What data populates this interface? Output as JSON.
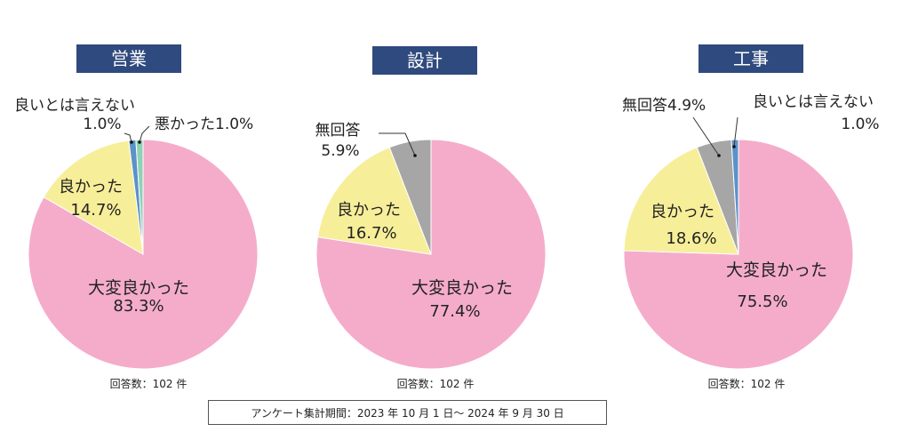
{
  "chart_data": [
    {
      "type": "pie",
      "title": "営業",
      "footnote": "回答数：102 件",
      "slices": [
        {
          "name": "大変良かった",
          "label": "83.3%",
          "value": 83.3,
          "color": "#F5ACCB"
        },
        {
          "name": "良かった",
          "label": "14.7%",
          "value": 14.7,
          "color": "#F7EE99"
        },
        {
          "name": "良いとは言えない",
          "label": "1.0%",
          "value": 1.0,
          "color": "#5B92C8"
        },
        {
          "name": "悪かった",
          "label": "1.0%",
          "value": 1.0,
          "color": "#8FD1B5"
        }
      ]
    },
    {
      "type": "pie",
      "title": "設計",
      "footnote": "回答数：102 件",
      "slices": [
        {
          "name": "大変良かった",
          "label": "77.4%",
          "value": 77.4,
          "color": "#F5ACCB"
        },
        {
          "name": "良かった",
          "label": "16.7%",
          "value": 16.7,
          "color": "#F7EE99"
        },
        {
          "name": "無回答",
          "label": "5.9%",
          "value": 5.9,
          "color": "#A6A6A6"
        }
      ]
    },
    {
      "type": "pie",
      "title": "工事",
      "footnote": "回答数：102 件",
      "slices": [
        {
          "name": "大変良かった",
          "label": "75.5%",
          "value": 75.5,
          "color": "#F5ACCB"
        },
        {
          "name": "良かった",
          "label": "18.6%",
          "value": 18.6,
          "color": "#F7EE99"
        },
        {
          "name": "無回答",
          "label": "4.9%",
          "value": 4.9,
          "color": "#A6A6A6"
        },
        {
          "name": "良いとは言えない",
          "label": "1.0%",
          "value": 1.0,
          "color": "#5B92C8"
        }
      ]
    }
  ],
  "period_note": "アンケート集計期間：2023 年 10 月 1 日～ 2024 年 9 月 30 日",
  "colors": {
    "title_bg": "#2F4A7E",
    "title_text": "#FFFFFF",
    "text": "#222222",
    "leader": "#333333"
  }
}
